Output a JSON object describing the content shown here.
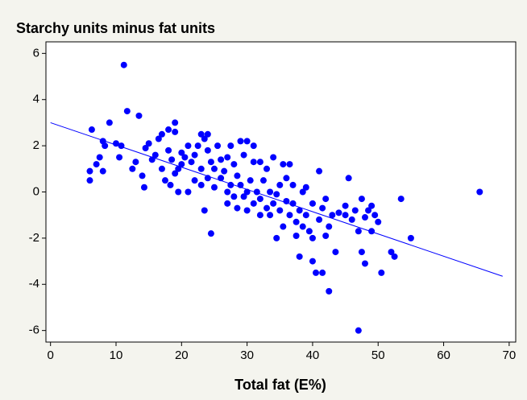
{
  "chart_data": {
    "type": "scatter",
    "title": "Starchy units minus fat units",
    "x_label": "Total fat (E%)",
    "color": "#0000ff",
    "xlim": [
      -0.7,
      71
    ],
    "ylim": [
      -6.5,
      6.5
    ],
    "xticks": [
      0,
      10,
      20,
      30,
      40,
      50,
      60,
      70
    ],
    "yticks": [
      -6,
      -4,
      -2,
      0,
      2,
      4,
      6
    ],
    "x": [
      6,
      6,
      6.3,
      7,
      7.5,
      8,
      8,
      8.3,
      9,
      10,
      10.5,
      10.8,
      11.2,
      11.7,
      12.5,
      13,
      13.5,
      14,
      14.3,
      14.5,
      15,
      15.5,
      16,
      16.5,
      17,
      17,
      17.5,
      18,
      18,
      18.3,
      18.5,
      19,
      19,
      19,
      19.5,
      19.5,
      20,
      20,
      20.5,
      21,
      21,
      21.5,
      22,
      22,
      22.5,
      23,
      23,
      23,
      23.5,
      23.5,
      24,
      24,
      24,
      24.5,
      24.5,
      25,
      25,
      25.5,
      26,
      26,
      26.5,
      27,
      27,
      27,
      27.5,
      27.5,
      28,
      28,
      28.5,
      28.5,
      29,
      29,
      29.5,
      29.5,
      30,
      30,
      30,
      30.5,
      31,
      31,
      31,
      31.5,
      32,
      32,
      32,
      32.5,
      33,
      33,
      33.5,
      33.5,
      34,
      34,
      34.5,
      34.5,
      35,
      35,
      35.5,
      35.5,
      36,
      36,
      36.5,
      36.5,
      37,
      37,
      37.5,
      37.5,
      38,
      38,
      38.5,
      38.5,
      39,
      39,
      39.5,
      40,
      40,
      40,
      40.5,
      41,
      41,
      41.5,
      41.5,
      42,
      42,
      42.5,
      42.5,
      43,
      43.5,
      44,
      45,
      45,
      45.5,
      46,
      46.5,
      47,
      47,
      47.5,
      47.5,
      48,
      48,
      48.5,
      49,
      49,
      49.5,
      50,
      50.5,
      52,
      52.5,
      53.5,
      55,
      65.5
    ],
    "y": [
      0.9,
      0.5,
      2.7,
      1.2,
      1.5,
      0.9,
      2.2,
      2.0,
      3.0,
      2.1,
      1.5,
      2.0,
      5.5,
      3.5,
      1.0,
      1.3,
      3.3,
      0.7,
      0.2,
      1.9,
      2.1,
      1.4,
      1.6,
      2.3,
      2.5,
      1.0,
      0.5,
      2.7,
      1.8,
      0.3,
      1.4,
      3.0,
      2.6,
      0.8,
      0.0,
      1.0,
      1.7,
      1.2,
      1.5,
      2.0,
      0.0,
      1.3,
      1.6,
      0.5,
      2.0,
      1.0,
      2.5,
      0.3,
      2.3,
      -0.8,
      1.8,
      0.6,
      2.5,
      1.3,
      -1.8,
      1.0,
      0.2,
      2.0,
      0.6,
      1.4,
      0.9,
      1.5,
      0.0,
      -0.5,
      2.0,
      0.3,
      -0.2,
      1.2,
      0.7,
      -0.7,
      2.2,
      0.3,
      1.6,
      -0.2,
      2.2,
      0.0,
      -0.8,
      0.5,
      1.3,
      -0.5,
      2.0,
      0.0,
      -0.3,
      1.3,
      -1.0,
      0.5,
      -0.7,
      1.0,
      0.0,
      -1.0,
      1.5,
      -0.5,
      -0.1,
      -2.0,
      0.3,
      -0.8,
      1.2,
      -1.5,
      -0.4,
      0.6,
      1.2,
      -1.0,
      -0.5,
      0.3,
      -1.3,
      -1.9,
      -0.8,
      -2.8,
      0.0,
      -1.5,
      0.2,
      -1.0,
      -1.7,
      -3.0,
      -0.5,
      -2.0,
      -3.5,
      0.9,
      -1.2,
      -0.7,
      -3.5,
      -1.9,
      -0.3,
      -1.5,
      -4.3,
      -1.0,
      -2.6,
      -0.9,
      -1.0,
      -0.6,
      0.6,
      -1.2,
      -0.8,
      -1.7,
      -6.0,
      -0.3,
      -2.6,
      -1.1,
      -3.1,
      -0.8,
      -0.6,
      -1.7,
      -1.0,
      -1.3,
      -3.5,
      -2.6,
      -2.8,
      -0.3,
      -2.0,
      0.0
    ],
    "fit_line": {
      "x": [
        0,
        69
      ],
      "y": [
        3.0,
        -3.65
      ],
      "color": "#0000ff"
    }
  }
}
